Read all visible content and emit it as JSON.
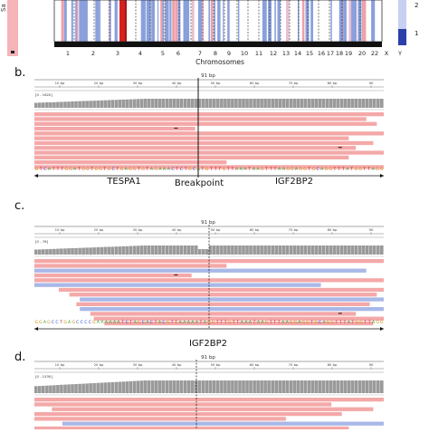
{
  "panel_a": {
    "y_label": "Sa",
    "chromosomes_label": "Chromosomes",
    "chromosome_ticks": [
      "1",
      "2",
      "3",
      "4",
      "5",
      "6",
      "7",
      "8",
      "9",
      "10",
      "11",
      "12",
      "13",
      "14",
      "15",
      "16",
      "17",
      "18",
      "19",
      "20",
      "22",
      "X",
      "Y"
    ],
    "colorbar_ticks": [
      "2",
      "1"
    ],
    "colors": {
      "deep_red": "#d62020",
      "light_red": "#f0a0a8",
      "blue": "#8aa0dc",
      "deep_blue": "#2b3fa8"
    }
  },
  "panel_b": {
    "letter": "b.",
    "bp_label": "91 bp",
    "ruler_ticks": [
      "10 bp",
      "20 bp",
      "30 bp",
      "40 bp",
      "50 bp",
      "60 bp",
      "70 bp",
      "80 bp",
      "90"
    ],
    "track_label": "[0 - 1620]",
    "sequence": "GTCATTTGGATGGTGGTGCTGAGGTGTAGAAACTCTGCATGTTTGTTAAATAAGTTTAAGGAGGTGCAGGTTTATGGTTAGG",
    "labels": {
      "left_gene": "TESPA1",
      "breakpoint": "Breakpoint",
      "right_gene": "IGF2BP2"
    }
  },
  "panel_c": {
    "letter": "c.",
    "bp_label": "91 bp",
    "ruler_ticks": [
      "10 bp",
      "20 bp",
      "30 bp",
      "40 bp",
      "50 bp",
      "60 bp",
      "70 bp",
      "80 bp",
      "90"
    ],
    "track_label": "[0 - 76]",
    "sequence": "GGAGCCTGAGCCCCGAAAAAATCTAGCACTACGTTAAAAATAGGTTTGTTAAATAAGTTTAAGGAGGTGCAGGTTTATGGTTAGG",
    "gene_label": "IGF2BP2"
  },
  "panel_d": {
    "letter": "d.",
    "bp_label": "91 bp",
    "ruler_ticks": [
      "10 bp",
      "20 bp",
      "30 bp",
      "40 bp",
      "50 bp",
      "60 bp",
      "70 bp",
      "80 bp",
      "90"
    ],
    "track_label": "[0 - 1530]"
  }
}
